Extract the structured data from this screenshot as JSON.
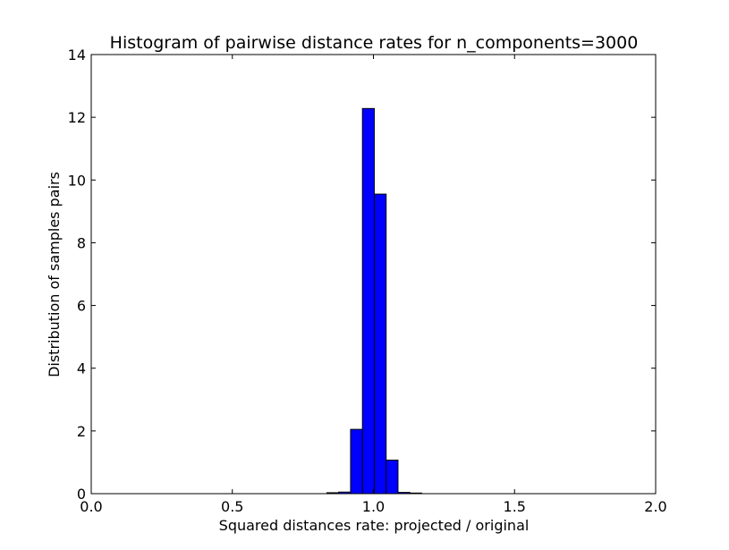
{
  "chart_data": {
    "type": "bar",
    "title": "Histogram of pairwise distance rates for n_components=3000",
    "xlabel": "Squared distances rate: projected / original",
    "ylabel": "Distribution of samples pairs",
    "xlim": [
      0.0,
      2.0
    ],
    "ylim": [
      0,
      14
    ],
    "xticks": [
      0.0,
      0.5,
      1.0,
      1.5,
      2.0
    ],
    "xtick_labels": [
      "0.0",
      "0.5",
      "1.0",
      "1.5",
      "2.0"
    ],
    "yticks": [
      0,
      2,
      4,
      6,
      8,
      10,
      12,
      14
    ],
    "ytick_labels": [
      "0",
      "2",
      "4",
      "6",
      "8",
      "10",
      "12",
      "14"
    ],
    "bar_color": "#0000ff",
    "bin_edges": [
      0.835,
      0.877,
      0.919,
      0.961,
      1.003,
      1.045,
      1.087,
      1.129,
      1.171
    ],
    "values": [
      0.03,
      0.05,
      2.05,
      12.28,
      9.55,
      1.07,
      0.04,
      0.02
    ],
    "grid": false,
    "legend": "none"
  }
}
